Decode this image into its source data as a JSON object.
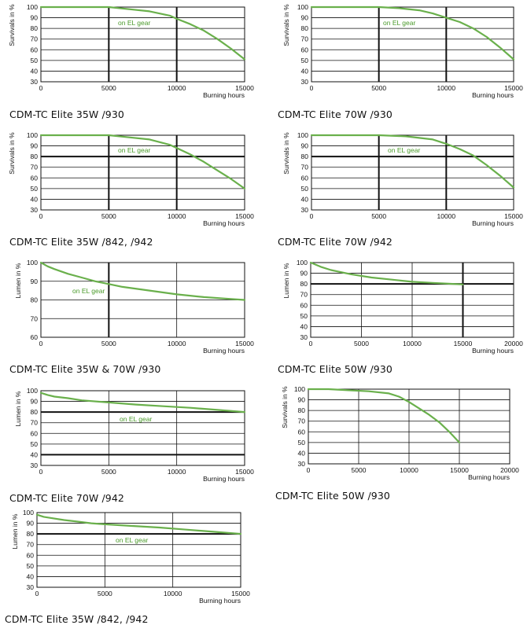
{
  "chart_data": [
    {
      "id": "p1",
      "type": "line",
      "caption": "CDM-TC Elite 35W /930",
      "ylabel": "Survivals in %",
      "xlabel": "Burning hours",
      "xlim": [
        0,
        15000
      ],
      "ylim": [
        30,
        100
      ],
      "xticks": [
        0,
        5000,
        10000,
        15000
      ],
      "yticks": [
        30,
        40,
        50,
        60,
        70,
        80,
        90,
        100
      ],
      "annotation": {
        "text": "on EL gear"
      },
      "series": [
        {
          "x": [
            0,
            2000,
            5000,
            6500,
            8000,
            9500,
            10000,
            11000,
            12000,
            13000,
            14000,
            15000
          ],
          "y": [
            100,
            100,
            100,
            98,
            96,
            92,
            89,
            84,
            78,
            70,
            61,
            51
          ]
        }
      ]
    },
    {
      "id": "p2",
      "type": "line",
      "caption": "CDM-TC Elite 70W /930",
      "ylabel": "Survivals in %",
      "xlabel": "Burning hours",
      "xlim": [
        0,
        15000
      ],
      "ylim": [
        30,
        100
      ],
      "xticks": [
        0,
        5000,
        10000,
        15000
      ],
      "yticks": [
        30,
        40,
        50,
        60,
        70,
        80,
        90,
        100
      ],
      "annotation": {
        "text": "on EL gear"
      },
      "series": [
        {
          "x": [
            0,
            3000,
            5000,
            6500,
            8000,
            9000,
            10000,
            11000,
            12000,
            13000,
            14000,
            15000
          ],
          "y": [
            100,
            100,
            100,
            99,
            97,
            94,
            90,
            86,
            80,
            72,
            62,
            51
          ]
        }
      ]
    },
    {
      "id": "p3",
      "type": "line",
      "caption": "CDM-TC Elite 35W /842, /942",
      "ylabel": "Survivals in %",
      "xlabel": "Burning hours",
      "xlim": [
        0,
        15000
      ],
      "ylim": [
        30,
        100
      ],
      "xticks": [
        0,
        5000,
        10000,
        15000
      ],
      "yticks": [
        30,
        40,
        50,
        60,
        70,
        80,
        90,
        100
      ],
      "bold_y": [
        80
      ],
      "annotation": {
        "text": "on EL gear"
      },
      "series": [
        {
          "x": [
            0,
            3000,
            5000,
            6500,
            8000,
            9500,
            10000,
            11000,
            12000,
            13000,
            14000,
            15000
          ],
          "y": [
            100,
            100,
            100,
            98,
            96,
            91,
            88,
            82,
            75,
            67,
            59,
            50
          ]
        }
      ]
    },
    {
      "id": "p4",
      "type": "line",
      "caption": "CDM-TC Elite 70W /942",
      "ylabel": "Survivals in %",
      "xlabel": "Burning hours",
      "xlim": [
        0,
        15000
      ],
      "ylim": [
        30,
        100
      ],
      "xticks": [
        0,
        5000,
        10000,
        15000
      ],
      "yticks": [
        30,
        40,
        50,
        60,
        70,
        80,
        90,
        100
      ],
      "bold_y": [
        80
      ],
      "annotation": {
        "text": "on EL gear"
      },
      "series": [
        {
          "x": [
            0,
            4000,
            5000,
            7000,
            9000,
            10000,
            11000,
            12000,
            13000,
            14000,
            15000
          ],
          "y": [
            100,
            100,
            100,
            99,
            96,
            92,
            87,
            81,
            72,
            62,
            51
          ]
        }
      ]
    },
    {
      "id": "p5",
      "type": "line",
      "caption": "CDM-TC Elite 35W & 70W /930",
      "ylabel": "Lumen in %",
      "xlabel": "Burning hours",
      "xlim": [
        0,
        15000
      ],
      "ylim": [
        60,
        100
      ],
      "xticks": [
        0,
        5000,
        10000,
        15000
      ],
      "yticks": [
        60,
        70,
        80,
        90,
        100
      ],
      "annotation": {
        "text": "on EL gear"
      },
      "series": [
        {
          "x": [
            0,
            500,
            1000,
            2000,
            3000,
            4000,
            5000,
            6000,
            8000,
            10000,
            12000,
            14000,
            15000
          ],
          "y": [
            100,
            98,
            96.5,
            94,
            92,
            90,
            88.5,
            87,
            85,
            83,
            81.5,
            80.5,
            80
          ]
        }
      ]
    },
    {
      "id": "p6",
      "type": "line",
      "caption": "CDM-TC Elite 50W /930",
      "ylabel": "Lumen in %",
      "xlabel": "Burning hours",
      "xlim": [
        0,
        20000
      ],
      "ylim": [
        30,
        100
      ],
      "xticks": [
        0,
        5000,
        10000,
        15000,
        20000
      ],
      "yticks": [
        30,
        40,
        50,
        60,
        70,
        80,
        90,
        100
      ],
      "bold_y": [
        80
      ],
      "series": [
        {
          "x": [
            0,
            1000,
            2000,
            4000,
            6000,
            8000,
            10000,
            12000,
            14000,
            15000
          ],
          "y": [
            100,
            96,
            93,
            89,
            86,
            84,
            82,
            81,
            80,
            79.5
          ]
        }
      ]
    },
    {
      "id": "p7",
      "type": "line",
      "caption": "CDM-TC Elite 70W /942",
      "ylabel": "Lumen in %",
      "xlabel": "Burning hours",
      "xlim": [
        0,
        15000
      ],
      "ylim": [
        30,
        100
      ],
      "xticks": [
        0,
        5000,
        10000,
        15000
      ],
      "yticks": [
        30,
        40,
        50,
        60,
        70,
        80,
        90,
        100
      ],
      "bold_y": [
        80,
        40
      ],
      "annotation": {
        "text": "on EL gear"
      },
      "series": [
        {
          "x": [
            0,
            500,
            1000,
            2000,
            3000,
            5000,
            7000,
            9000,
            11000,
            13000,
            15000
          ],
          "y": [
            98,
            96,
            94.5,
            93,
            91,
            89,
            87,
            85.5,
            84,
            82,
            80
          ]
        }
      ]
    },
    {
      "id": "p8",
      "type": "line",
      "caption": "CDM-TC Elite 50W /930",
      "ylabel": "Survivals in %",
      "xlabel": "Burning hours",
      "xlim": [
        0,
        20000
      ],
      "ylim": [
        30,
        100
      ],
      "xticks": [
        0,
        5000,
        10000,
        15000,
        20000
      ],
      "yticks": [
        30,
        40,
        50,
        60,
        70,
        80,
        90,
        100
      ],
      "series": [
        {
          "x": [
            0,
            2000,
            4000,
            6000,
            8000,
            9000,
            10000,
            11000,
            12000,
            13000,
            14000,
            15000
          ],
          "y": [
            100,
            100,
            99,
            98,
            96,
            93,
            88,
            82,
            76,
            69,
            60,
            50
          ]
        }
      ]
    },
    {
      "id": "p9",
      "type": "line",
      "caption": "CDM-TC Elite 35W /842, /942",
      "ylabel": "Lumen in %",
      "xlabel": "Burning hours",
      "xlim": [
        0,
        15000
      ],
      "ylim": [
        30,
        100
      ],
      "xticks": [
        0,
        5000,
        10000,
        15000
      ],
      "yticks": [
        30,
        40,
        50,
        60,
        70,
        80,
        90,
        100
      ],
      "bold_y": [
        80
      ],
      "annotation": {
        "text": "on EL gear"
      },
      "series": [
        {
          "x": [
            0,
            500,
            1000,
            2000,
            3000,
            4000,
            5000,
            7000,
            9000,
            11000,
            13000,
            15000
          ],
          "y": [
            98,
            96,
            95,
            93,
            91.5,
            90,
            89,
            87.5,
            86,
            84,
            82,
            80
          ]
        }
      ]
    }
  ],
  "line_color": "#6ab04c",
  "annotation_color": "#4a9a2a"
}
